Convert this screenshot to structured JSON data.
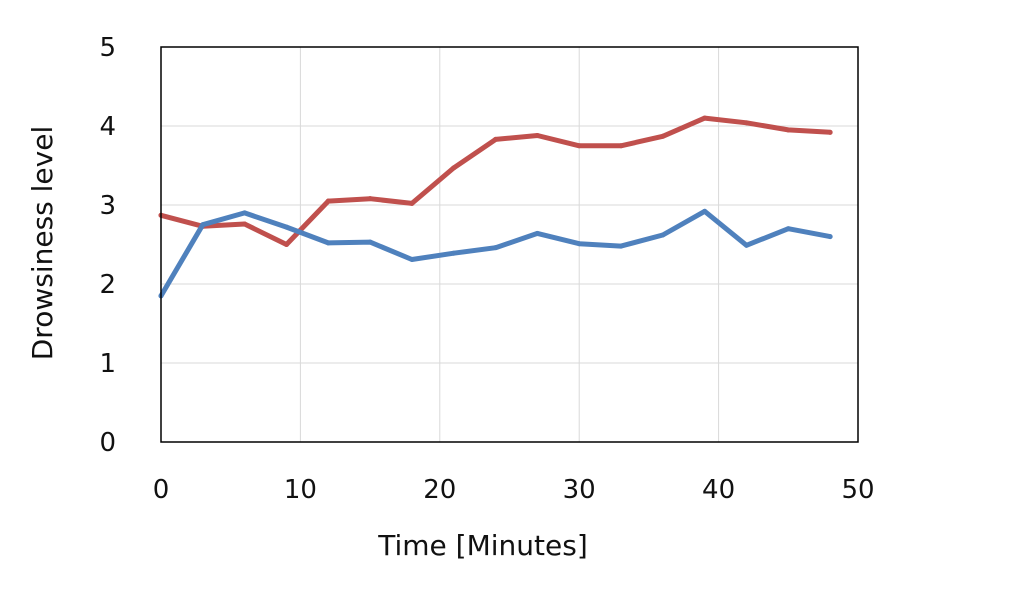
{
  "chart_data": {
    "type": "line",
    "title": "",
    "xlabel": "Time [Minutes]",
    "ylabel": "Drowsiness level",
    "xlim": [
      0,
      50
    ],
    "ylim": [
      0,
      5
    ],
    "xticks": [
      "0",
      "10",
      "20",
      "30",
      "40",
      "50"
    ],
    "yticks": [
      "0",
      "1",
      "2",
      "3",
      "4",
      "5"
    ],
    "grid": true,
    "legend": "none",
    "series": [
      {
        "color": "#c0504d",
        "x": [
          0,
          3,
          6,
          9,
          12,
          15,
          18,
          21,
          24,
          27,
          30,
          33,
          36,
          39,
          42,
          45,
          48
        ],
        "y": [
          2.87,
          2.73,
          2.76,
          2.5,
          3.05,
          3.08,
          3.02,
          3.47,
          3.83,
          3.88,
          3.75,
          3.75,
          3.87,
          4.1,
          4.04,
          3.95,
          3.92
        ]
      },
      {
        "color": "#4f81bd",
        "x": [
          0,
          3,
          6,
          9,
          12,
          15,
          18,
          21,
          24,
          27,
          30,
          33,
          36,
          39,
          42,
          45,
          48
        ],
        "y": [
          1.85,
          2.75,
          2.9,
          2.72,
          2.52,
          2.53,
          2.31,
          2.39,
          2.46,
          2.64,
          2.51,
          2.48,
          2.62,
          2.92,
          2.49,
          2.7,
          2.6
        ]
      }
    ]
  }
}
